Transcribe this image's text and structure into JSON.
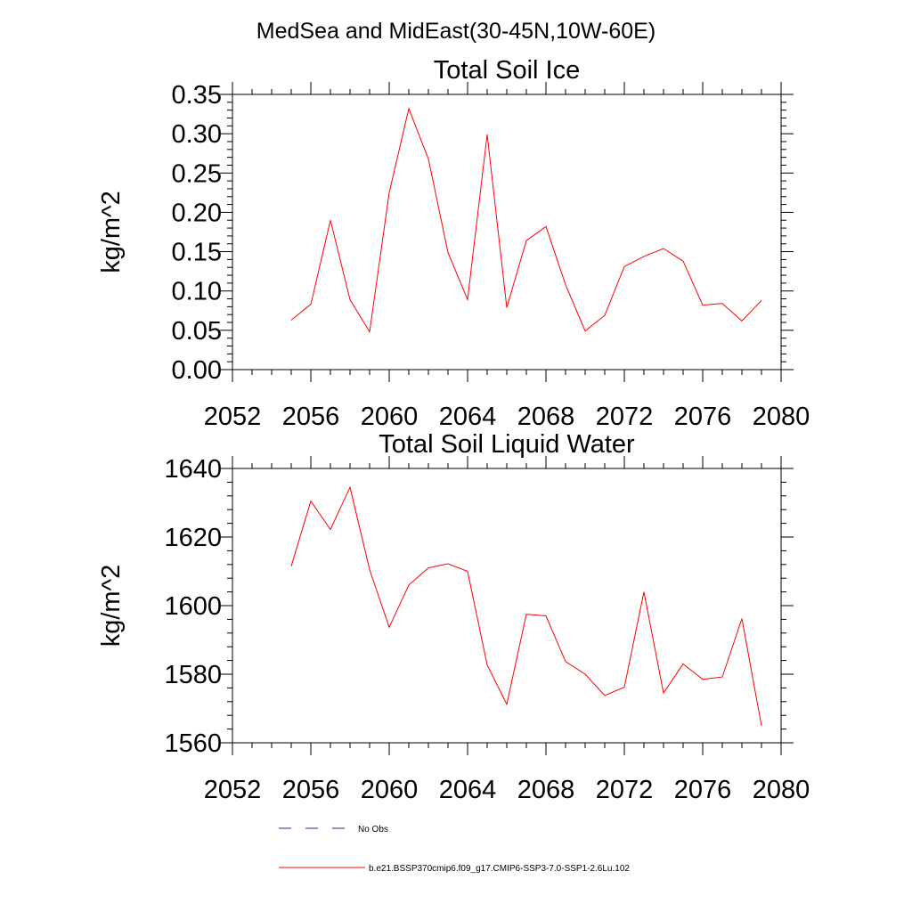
{
  "figure": {
    "suptitle": "MedSea and MidEast(30-45N,10W-60E)"
  },
  "chart_data": [
    {
      "type": "line",
      "title": "Total Soil Ice",
      "xlabel": "",
      "ylabel": "kg/m^2",
      "xlim": [
        2052,
        2080
      ],
      "ylim": [
        0,
        0.35
      ],
      "xticks": [
        2052,
        2056,
        2060,
        2064,
        2068,
        2072,
        2076,
        2080
      ],
      "yticks": [
        0.0,
        0.05,
        0.1,
        0.15,
        0.2,
        0.25,
        0.3,
        0.35
      ],
      "ytick_labels": [
        "0.00",
        "0.05",
        "0.10",
        "0.15",
        "0.20",
        "0.25",
        "0.30",
        "0.35"
      ],
      "grid": false,
      "series": [
        {
          "name": "b.e21.BSSP370cmip6.f09_g17.CMIP6-SSP3-7.0-SSP1-2.6Lu.102",
          "color": "#ff0000",
          "x": [
            2055,
            2056,
            2057,
            2058,
            2059,
            2060,
            2061,
            2062,
            2063,
            2064,
            2065,
            2066,
            2067,
            2068,
            2069,
            2070,
            2071,
            2072,
            2073,
            2074,
            2075,
            2076,
            2077,
            2078,
            2079
          ],
          "y": [
            0.063,
            0.083,
            0.19,
            0.089,
            0.048,
            0.225,
            0.332,
            0.268,
            0.149,
            0.089,
            0.299,
            0.079,
            0.164,
            0.182,
            0.108,
            0.049,
            0.069,
            0.131,
            0.144,
            0.154,
            0.138,
            0.082,
            0.084,
            0.062,
            0.088
          ]
        }
      ]
    },
    {
      "type": "line",
      "title": "Total Soil Liquid Water",
      "xlabel": "",
      "ylabel": "kg/m^2",
      "xlim": [
        2052,
        2080
      ],
      "ylim": [
        1560,
        1640
      ],
      "xticks": [
        2052,
        2056,
        2060,
        2064,
        2068,
        2072,
        2076,
        2080
      ],
      "yticks": [
        1560,
        1580,
        1600,
        1620,
        1640
      ],
      "ytick_labels": [
        "1560",
        "1580",
        "1600",
        "1620",
        "1640"
      ],
      "grid": false,
      "series": [
        {
          "name": "b.e21.BSSP370cmip6.f09_g17.CMIP6-SSP3-7.0-SSP1-2.6Lu.102",
          "color": "#ff0000",
          "x": [
            2055,
            2056,
            2057,
            2058,
            2059,
            2060,
            2061,
            2062,
            2063,
            2064,
            2065,
            2066,
            2067,
            2068,
            2069,
            2070,
            2071,
            2072,
            2073,
            2074,
            2075,
            2076,
            2077,
            2078,
            2079
          ],
          "y": [
            1611.5,
            1630.5,
            1622.2,
            1634.5,
            1610.5,
            1593.7,
            1606.0,
            1611.0,
            1612.2,
            1610.0,
            1582.7,
            1571.2,
            1597.5,
            1597.0,
            1583.7,
            1580.0,
            1573.8,
            1576.2,
            1604.0,
            1574.5,
            1583.0,
            1578.5,
            1579.2,
            1596.2,
            1565.0
          ]
        }
      ]
    }
  ],
  "legend": {
    "entries": [
      {
        "label": "No Obs",
        "style": "dashed",
        "color": "#2a2a8a"
      },
      {
        "label": "b.e21.BSSP370cmip6.f09_g17.CMIP6-SSP3-7.0-SSP1-2.6Lu.102",
        "style": "solid",
        "color": "#ff0000"
      }
    ]
  }
}
